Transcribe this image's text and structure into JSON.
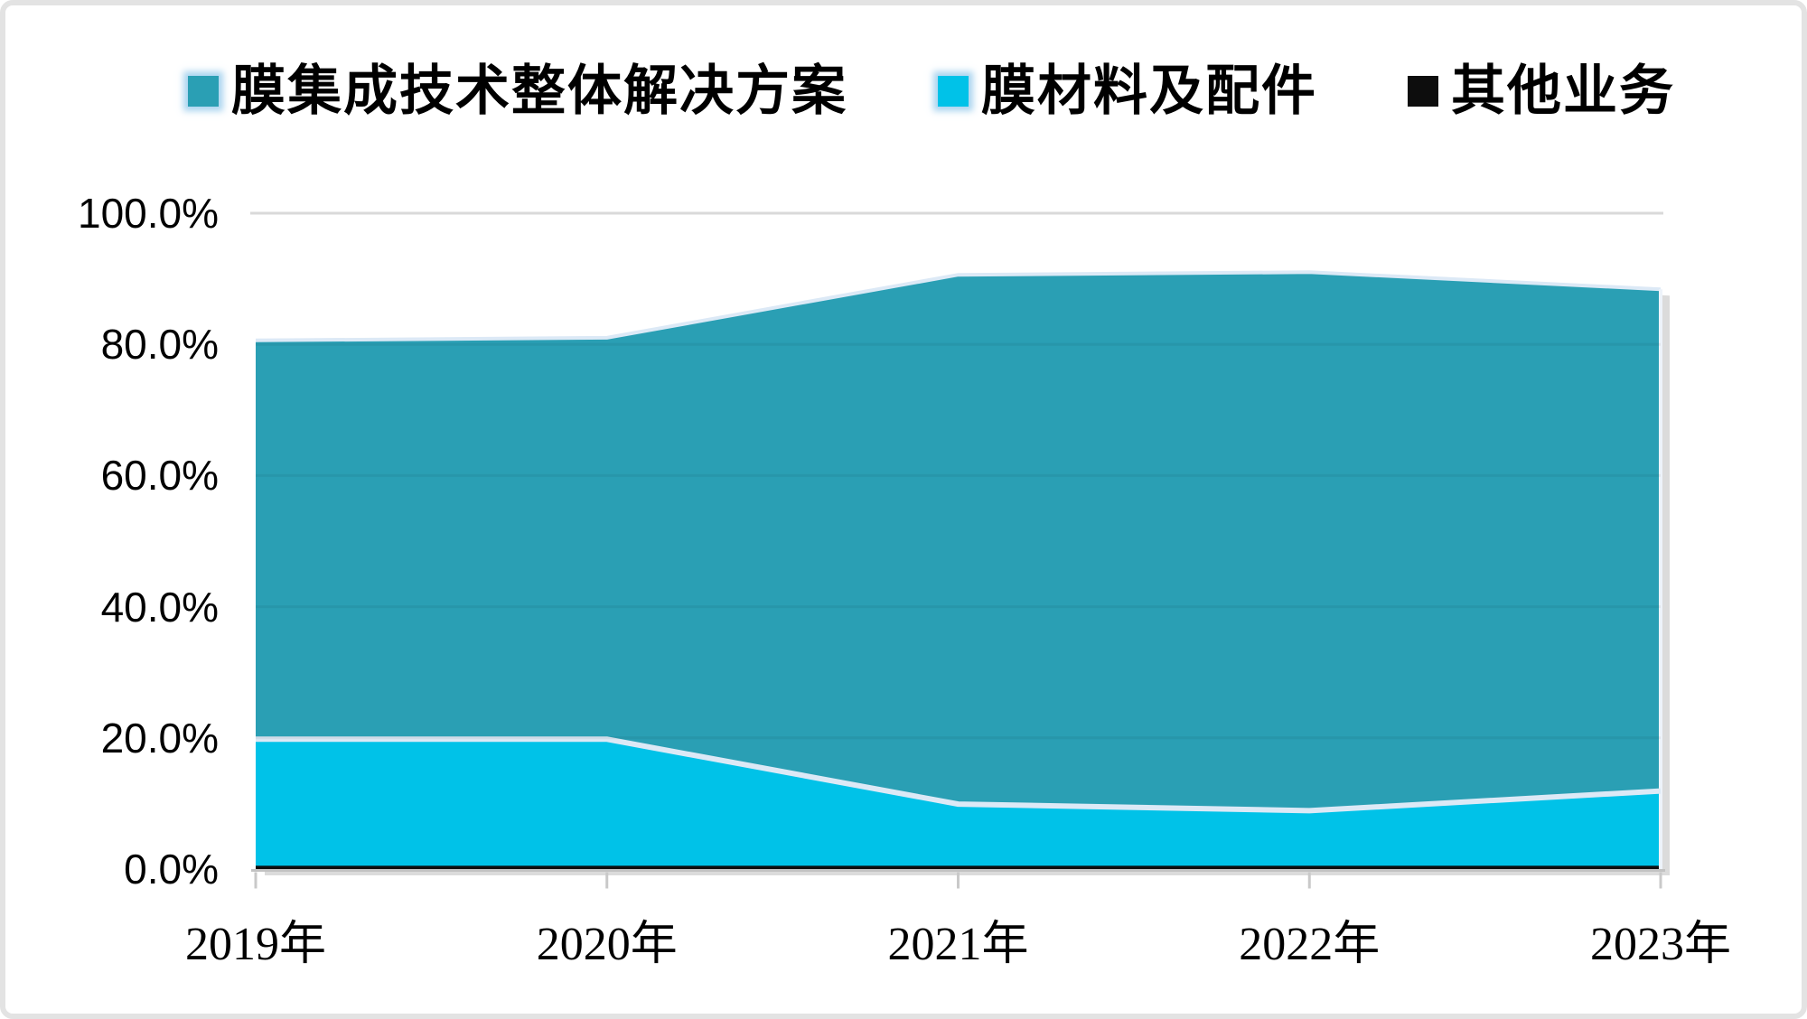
{
  "legend": {
    "position": "top",
    "items": [
      {
        "label": "膜集成技术整体解决方案",
        "color": "#2A9FB4",
        "glow": true
      },
      {
        "label": "膜材料及配件",
        "color": "#00C2E8",
        "glow": true
      },
      {
        "label": "其他业务",
        "color": "#0D0D0D",
        "glow": false
      }
    ]
  },
  "chart_data": {
    "type": "area",
    "stacked": true,
    "title": "",
    "xlabel": "",
    "ylabel": "",
    "categories": [
      "2019年",
      "2020年",
      "2021年",
      "2022年",
      "2023年"
    ],
    "series": [
      {
        "name": "膜集成技术整体解决方案",
        "color": "#2A9FB4",
        "values": [
          60.8,
          61.2,
          80.7,
          82.1,
          76.5
        ]
      },
      {
        "name": "膜材料及配件",
        "color": "#00C2E8",
        "values": [
          19.3,
          19.3,
          9.4,
          8.4,
          11.4
        ]
      },
      {
        "name": "其他业务",
        "color": "#0D0D0D",
        "values": [
          0.5,
          0.5,
          0.5,
          0.5,
          0.5
        ]
      }
    ],
    "stack_order_bottom_to_top": [
      "其他业务",
      "膜材料及配件",
      "膜集成技术整体解决方案"
    ],
    "cumulative_totals_percent": [
      80.6,
      81.0,
      90.6,
      91.0,
      88.4
    ],
    "ylim": [
      0,
      100
    ],
    "y_tick_step": 20,
    "y_ticks": [
      {
        "label": "100.0%",
        "value": 100
      },
      {
        "label": "80.0%",
        "value": 80
      },
      {
        "label": "60.0%",
        "value": 60
      },
      {
        "label": "40.0%",
        "value": 40
      },
      {
        "label": "20.0%",
        "value": 20
      },
      {
        "label": "0.0%",
        "value": 0
      }
    ],
    "grid": "horizontal; top 100% gridline visible, inner gridlines faint through fills",
    "legend_position": "top",
    "style": {
      "gridline_color": "#D9D9D9",
      "axis_line_color": "#C2C2C2",
      "tick_color": "#C9C9C9",
      "series_boundary_line_color": "#DCE9F6",
      "shadow_color": "#DBDBDB",
      "text_color": "#000000"
    }
  }
}
